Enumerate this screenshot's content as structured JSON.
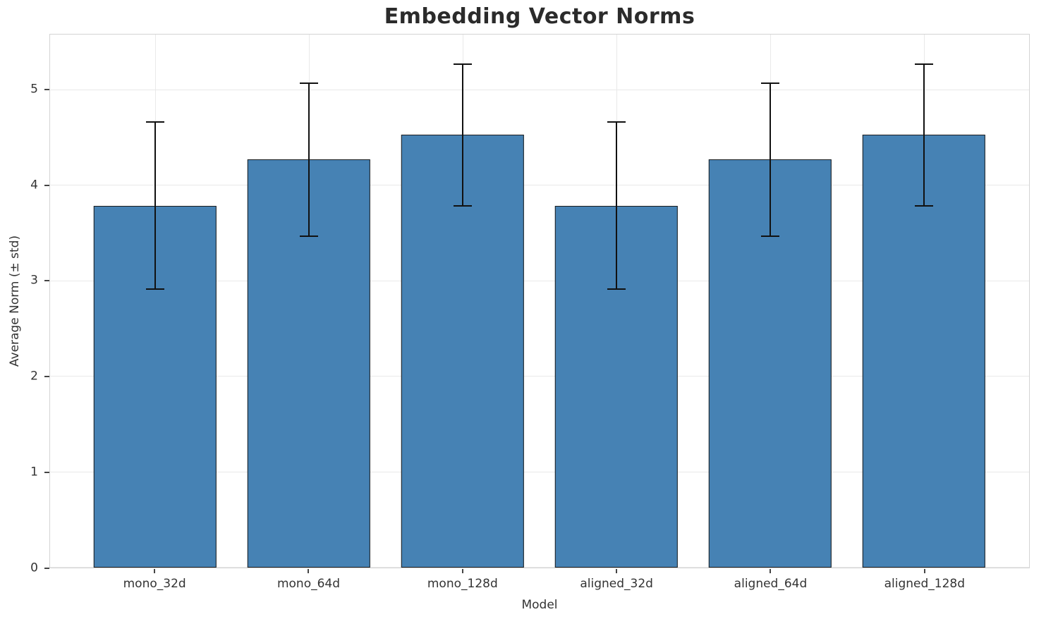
{
  "chart_data": {
    "type": "bar",
    "title": "Embedding Vector Norms",
    "xlabel": "Model",
    "ylabel": "Average Norm (± std)",
    "categories": [
      "mono_32d",
      "mono_64d",
      "mono_128d",
      "aligned_32d",
      "aligned_64d",
      "aligned_128d"
    ],
    "values": [
      3.79,
      4.27,
      4.53,
      3.79,
      4.27,
      4.53
    ],
    "errors": [
      0.88,
      0.81,
      0.75,
      0.88,
      0.81,
      0.75
    ],
    "yticks": [
      0,
      1,
      2,
      3,
      4,
      5
    ],
    "ylim": [
      0,
      5.58
    ],
    "grid": true,
    "legend": null,
    "colors": {
      "bar": "#4682B4",
      "bar_edge": "#1c1c1c",
      "error": "#111111",
      "grid": "#e9e9e9",
      "spine": "#d4d4d4",
      "text": "#333333",
      "title": "#2b2b2b",
      "background": "#ffffff"
    }
  }
}
